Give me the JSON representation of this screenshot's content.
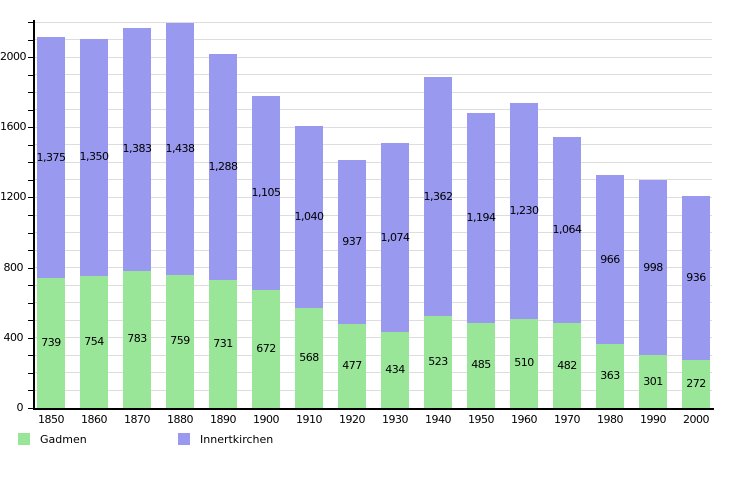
{
  "chart_data": {
    "type": "bar",
    "stacked": true,
    "title": "",
    "xlabel": "",
    "ylabel": "",
    "categories": [
      "1850",
      "1860",
      "1870",
      "1880",
      "1890",
      "1900",
      "1910",
      "1920",
      "1930",
      "1940",
      "1950",
      "1960",
      "1970",
      "1980",
      "1990",
      "2000"
    ],
    "series": [
      {
        "name": "Gadmen",
        "color": "#99e699",
        "values": [
          739,
          754,
          783,
          759,
          731,
          672,
          568,
          477,
          434,
          523,
          485,
          510,
          482,
          363,
          301,
          272
        ]
      },
      {
        "name": "Innertkirchen",
        "color": "#9999f0",
        "values": [
          1375,
          1350,
          1383,
          1438,
          1288,
          1105,
          1040,
          937,
          1074,
          1362,
          1194,
          1230,
          1064,
          966,
          998,
          936
        ]
      }
    ],
    "ylim": [
      0,
      2200
    ],
    "y_major_ticks": [
      0,
      400,
      800,
      1200,
      1600,
      2000
    ],
    "y_minor_step": 100,
    "grid": true,
    "legend_position": "bottom-left",
    "background_color": "#ffffff",
    "grid_color": "#dddddd",
    "axis_color": "#000000",
    "label_color": "#000000"
  }
}
